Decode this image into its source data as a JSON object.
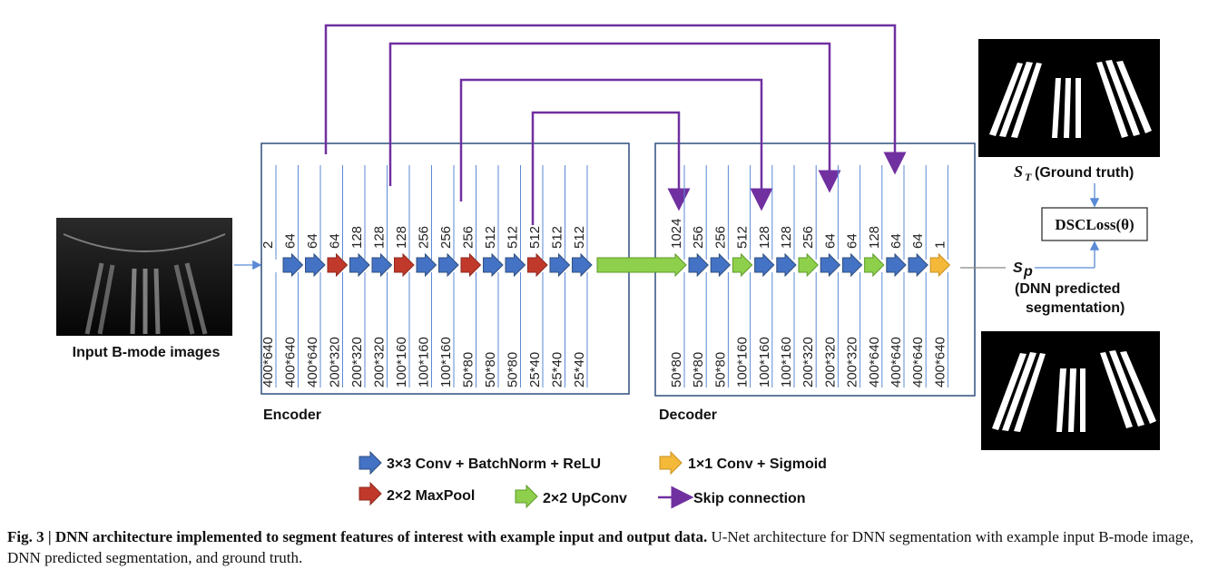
{
  "input_label": "Input B-mode images",
  "encoder_label": "Encoder",
  "decoder_label": "Decoder",
  "ground_truth_label": "(Ground truth)",
  "loss_label": "DSCLoss(θ)",
  "sp_symbol": "S",
  "sp_sub": "p",
  "st_symbol": "S",
  "st_sub": "T",
  "prediction_label_line1": "(DNN predicted",
  "prediction_label_line2": "segmentation)",
  "encoder_steps": [
    {
      "arrow": "conv",
      "top": "2",
      "bottom": "400*640"
    },
    {
      "arrow": "conv",
      "top": "64",
      "bottom": "400*640"
    },
    {
      "arrow": "pool",
      "top": "64",
      "bottom": "400*640"
    },
    {
      "arrow": "conv",
      "top": "64",
      "bottom": "200*320"
    },
    {
      "arrow": "conv",
      "top": "128",
      "bottom": "200*320"
    },
    {
      "arrow": "pool",
      "top": "128",
      "bottom": "200*320"
    },
    {
      "arrow": "conv",
      "top": "128",
      "bottom": "100*160"
    },
    {
      "arrow": "conv",
      "top": "256",
      "bottom": "100*160"
    },
    {
      "arrow": "pool",
      "top": "256",
      "bottom": "100*160"
    },
    {
      "arrow": "conv",
      "top": "256",
      "bottom": "50*80"
    },
    {
      "arrow": "conv",
      "top": "512",
      "bottom": "50*80"
    },
    {
      "arrow": "pool",
      "top": "512",
      "bottom": "50*80"
    },
    {
      "arrow": "conv",
      "top": "512",
      "bottom": "25*40"
    },
    {
      "arrow": "conv",
      "top": "512",
      "bottom": "25*40"
    },
    {
      "arrow": "upconv",
      "top": "512",
      "bottom": "25*40"
    }
  ],
  "decoder_steps": [
    {
      "arrow": "conv",
      "top": "1024",
      "bottom": "50*80"
    },
    {
      "arrow": "conv",
      "top": "256",
      "bottom": "50*80"
    },
    {
      "arrow": "upconv",
      "top": "256",
      "bottom": "50*80"
    },
    {
      "arrow": "conv",
      "top": "512",
      "bottom": "100*160"
    },
    {
      "arrow": "conv",
      "top": "128",
      "bottom": "100*160"
    },
    {
      "arrow": "upconv",
      "top": "128",
      "bottom": "100*160"
    },
    {
      "arrow": "conv",
      "top": "256",
      "bottom": "200*320"
    },
    {
      "arrow": "conv",
      "top": "64",
      "bottom": "200*320"
    },
    {
      "arrow": "upconv",
      "top": "64",
      "bottom": "200*320"
    },
    {
      "arrow": "conv",
      "top": "128",
      "bottom": "400*640"
    },
    {
      "arrow": "conv",
      "top": "64",
      "bottom": "400*640"
    },
    {
      "arrow": "sigmoid",
      "top": "64",
      "bottom": "400*640"
    },
    {
      "arrow": "",
      "top": "1",
      "bottom": "400*640"
    }
  ],
  "legend": {
    "conv": "3×3 Conv + BatchNorm + ReLU",
    "sigmoid": "1×1 Conv + Sigmoid",
    "pool": "2×2 MaxPool",
    "upconv": "2×2 UpConv",
    "skip": "Skip connection"
  },
  "colors": {
    "conv": "#4472c4",
    "pool": "#c0392b",
    "upconv": "#8ed04b",
    "sigmoid": "#f5b93a",
    "skip": "#7030a0",
    "box": "#2f4f7f",
    "thin": "#5b8ad6"
  },
  "caption": {
    "bold": "Fig. 3 | DNN architecture implemented to segment features of interest with example input and output data.",
    "text": " U-Net architecture for DNN segmentation with example input B-mode image, DNN predicted segmentation, and ground truth."
  }
}
